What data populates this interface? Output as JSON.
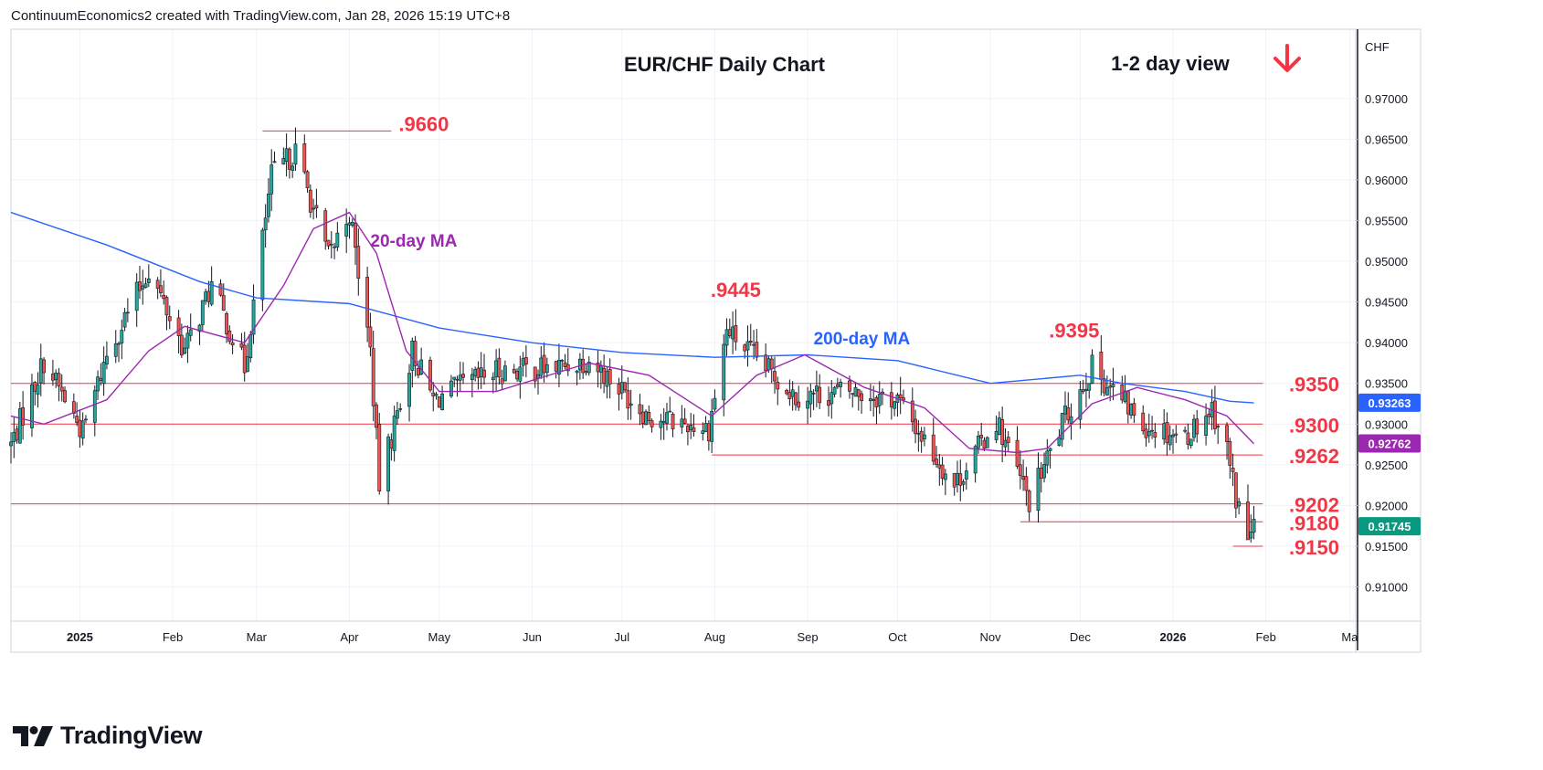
{
  "header": {
    "attribution": "ContinuumEconomics2 created with TradingView.com, Jan 28, 2026 15:19 UTC+8"
  },
  "brand": {
    "name": "TradingView",
    "icon": "tradingview-logo-icon"
  },
  "colors": {
    "up": "#26a69a",
    "down": "#ef5350",
    "ma200": "#2962ff",
    "ma20": "#9c27b0",
    "level": "#f23645",
    "tag_current": "#089981",
    "tag_ma200": "#2962ff",
    "tag_ma20": "#9c27b0"
  },
  "chart_data": {
    "type": "candlestick",
    "title": "EUR/CHF Daily Chart",
    "view_label": "1-2 day view",
    "view_direction": "down",
    "view_icon": "down-arrow-icon",
    "currency_label": "CHF",
    "ylim": [
      0.9058,
      0.9785
    ],
    "y_ticks": [
      "0.97000",
      "0.96500",
      "0.96000",
      "0.95500",
      "0.95000",
      "0.94500",
      "0.94000",
      "0.93500",
      "0.93000",
      "0.92500",
      "0.92000",
      "0.91500",
      "0.91000"
    ],
    "y_tick_values": [
      0.97,
      0.965,
      0.96,
      0.955,
      0.95,
      0.945,
      0.94,
      0.935,
      0.93,
      0.925,
      0.92,
      0.915,
      0.91
    ],
    "x_range": [
      "2024-12-09",
      "2026-03-03"
    ],
    "x_ticks": [
      {
        "label": "2025",
        "date": "2025-01-01",
        "bold": true
      },
      {
        "label": "Feb",
        "date": "2025-02-01"
      },
      {
        "label": "Mar",
        "date": "2025-03-01"
      },
      {
        "label": "Apr",
        "date": "2025-04-01"
      },
      {
        "label": "May",
        "date": "2025-05-01"
      },
      {
        "label": "Jun",
        "date": "2025-06-01"
      },
      {
        "label": "Jul",
        "date": "2025-07-01"
      },
      {
        "label": "Aug",
        "date": "2025-08-01"
      },
      {
        "label": "Sep",
        "date": "2025-09-01"
      },
      {
        "label": "Oct",
        "date": "2025-10-01"
      },
      {
        "label": "Nov",
        "date": "2025-11-01"
      },
      {
        "label": "Dec",
        "date": "2025-12-01"
      },
      {
        "label": "2026",
        "date": "2026-01-01",
        "bold": true
      },
      {
        "label": "Feb",
        "date": "2026-02-01"
      },
      {
        "label": "Ma",
        "date": "2026-03-01"
      }
    ],
    "price_path": [
      [
        "2024-12-09",
        0.9275
      ],
      [
        "2024-12-20",
        0.9378
      ],
      [
        "2025-01-02",
        0.929
      ],
      [
        "2025-01-10",
        0.9385
      ],
      [
        "2025-01-24",
        0.949
      ],
      [
        "2025-02-05",
        0.939
      ],
      [
        "2025-02-14",
        0.947
      ],
      [
        "2025-02-25",
        0.937
      ],
      [
        "2025-03-06",
        0.9605
      ],
      [
        "2025-03-14",
        0.9635
      ],
      [
        "2025-03-25",
        0.9505
      ],
      [
        "2025-04-01",
        0.956
      ],
      [
        "2025-04-08",
        0.939
      ],
      [
        "2025-04-11",
        0.9225
      ],
      [
        "2025-04-22",
        0.939
      ],
      [
        "2025-04-29",
        0.933
      ],
      [
        "2025-05-20",
        0.9365
      ],
      [
        "2025-06-10",
        0.937
      ],
      [
        "2025-06-20",
        0.938
      ],
      [
        "2025-07-10",
        0.931
      ],
      [
        "2025-07-30",
        0.9295
      ],
      [
        "2025-08-05",
        0.9415
      ],
      [
        "2025-08-15",
        0.938
      ],
      [
        "2025-08-28",
        0.9335
      ],
      [
        "2025-09-15",
        0.934
      ],
      [
        "2025-10-01",
        0.933
      ],
      [
        "2025-10-20",
        0.9225
      ],
      [
        "2025-11-03",
        0.9305
      ],
      [
        "2025-11-14",
        0.9205
      ],
      [
        "2025-11-25",
        0.93
      ],
      [
        "2025-12-05",
        0.937
      ],
      [
        "2025-12-22",
        0.93
      ],
      [
        "2026-01-05",
        0.9285
      ],
      [
        "2026-01-14",
        0.932
      ],
      [
        "2026-01-19",
        0.927
      ],
      [
        "2026-01-22",
        0.921
      ],
      [
        "2026-01-26",
        0.916
      ],
      [
        "2026-01-28",
        0.9175
      ]
    ],
    "ma200_path": [
      [
        "2024-12-09",
        0.956
      ],
      [
        "2025-01-10",
        0.952
      ],
      [
        "2025-02-10",
        0.9475
      ],
      [
        "2025-03-01",
        0.9455
      ],
      [
        "2025-04-01",
        0.9448
      ],
      [
        "2025-05-01",
        0.9418
      ],
      [
        "2025-06-01",
        0.94
      ],
      [
        "2025-07-01",
        0.9388
      ],
      [
        "2025-08-01",
        0.9382
      ],
      [
        "2025-09-01",
        0.9385
      ],
      [
        "2025-10-01",
        0.9378
      ],
      [
        "2025-11-01",
        0.935
      ],
      [
        "2025-12-01",
        0.936
      ],
      [
        "2025-12-15",
        0.935
      ],
      [
        "2026-01-05",
        0.934
      ],
      [
        "2026-01-20",
        0.9328
      ],
      [
        "2026-01-28",
        0.9326
      ]
    ],
    "ma20_path": [
      [
        "2024-12-09",
        0.931
      ],
      [
        "2024-12-20",
        0.93
      ],
      [
        "2025-01-10",
        0.933
      ],
      [
        "2025-01-24",
        0.939
      ],
      [
        "2025-02-05",
        0.942
      ],
      [
        "2025-02-25",
        0.94
      ],
      [
        "2025-03-10",
        0.947
      ],
      [
        "2025-03-20",
        0.954
      ],
      [
        "2025-04-01",
        0.956
      ],
      [
        "2025-04-10",
        0.951
      ],
      [
        "2025-04-20",
        0.939
      ],
      [
        "2025-05-01",
        0.934
      ],
      [
        "2025-05-20",
        0.934
      ],
      [
        "2025-06-20",
        0.9375
      ],
      [
        "2025-07-10",
        0.936
      ],
      [
        "2025-07-31",
        0.931
      ],
      [
        "2025-08-15",
        0.936
      ],
      [
        "2025-08-31",
        0.9385
      ],
      [
        "2025-09-20",
        0.9345
      ],
      [
        "2025-10-10",
        0.932
      ],
      [
        "2025-10-25",
        0.927
      ],
      [
        "2025-11-10",
        0.9265
      ],
      [
        "2025-11-20",
        0.927
      ],
      [
        "2025-12-05",
        0.9325
      ],
      [
        "2025-12-20",
        0.9345
      ],
      [
        "2026-01-05",
        0.933
      ],
      [
        "2026-01-19",
        0.931
      ],
      [
        "2026-01-28",
        0.9276
      ]
    ],
    "series_labels": [
      {
        "name": "20-day MA",
        "anchor_date": "2025-04-08",
        "anchor_value": 0.9518
      },
      {
        "name": "200-day MA",
        "anchor_date": "2025-09-03",
        "anchor_value": 0.9398
      }
    ],
    "levels": [
      {
        "label": ".9660",
        "value": 0.966,
        "from": "2025-03-03",
        "to": "2025-04-15"
      },
      {
        "label": ".9445",
        "value": 0.9445,
        "label_date": "2025-08-08"
      },
      {
        "label": ".9395",
        "value": 0.9395,
        "label_date": "2025-11-29"
      },
      {
        "label": ".9350",
        "value": 0.935,
        "from": "2024-12-09",
        "to": "2026-01-31"
      },
      {
        "label": ".9300",
        "value": 0.93,
        "from": "2024-12-09",
        "to": "2026-01-31"
      },
      {
        "label": ".9262",
        "value": 0.9262,
        "from": "2025-07-31",
        "to": "2026-01-31"
      },
      {
        "label": ".9202",
        "value": 0.9202,
        "from": "2024-12-09",
        "to": "2026-01-31"
      },
      {
        "label": ".9180",
        "value": 0.918,
        "from": "2025-11-11",
        "to": "2026-01-31"
      },
      {
        "label": ".9150",
        "value": 0.915,
        "from": "2026-01-21",
        "to": "2026-01-31"
      }
    ],
    "price_tags": [
      {
        "label": "0.93263",
        "value": 0.93263,
        "kind": "ma200"
      },
      {
        "label": "0.92762",
        "value": 0.92762,
        "kind": "ma20"
      },
      {
        "label": "0.91745",
        "value": 0.91745,
        "kind": "current"
      }
    ]
  }
}
